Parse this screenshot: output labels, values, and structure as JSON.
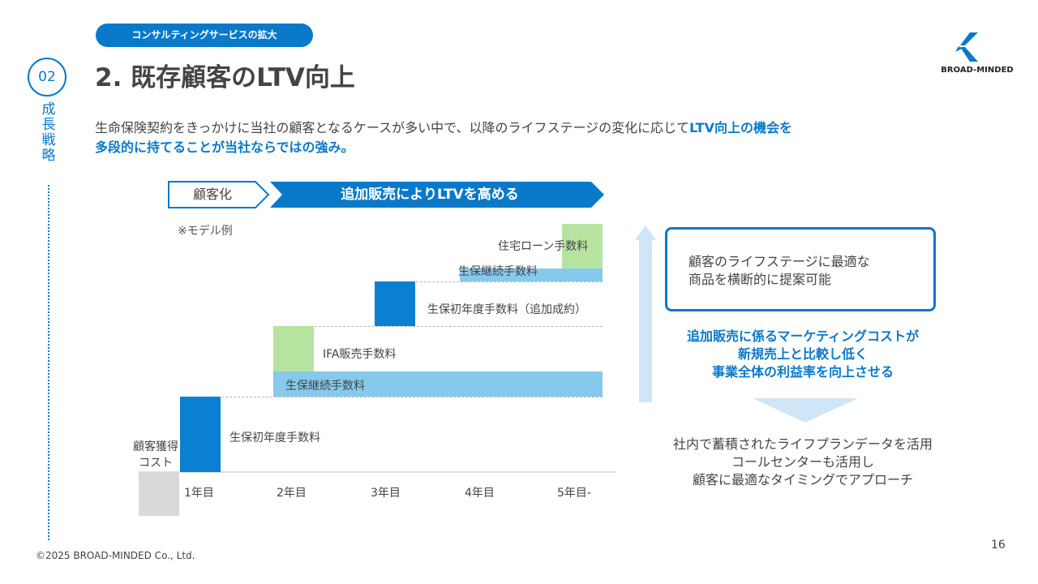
{
  "header": {
    "tag": "コンサルティングサービスの拡大",
    "section_number": "02",
    "title": "2. 既存顧客のLTV向上",
    "side_label": "成長戦略",
    "logo_text": "BROAD-MINDED"
  },
  "lead": {
    "text_part1": "生命保険契約をきっかけに当社の顧客となるケースが多い中で、以降のライフステージの変化に応じて",
    "highlight_part1": "LTV向上の機会を",
    "highlight_part2": "多段的に持てることが当社ならではの強み。"
  },
  "phases": {
    "phase1": "顧客化",
    "phase2": "追加販売によりLTVを高める"
  },
  "note": "※モデル例",
  "chart": {
    "acquisition_cost": "顧客獲得\nコスト",
    "labels": {
      "y1_first": "生保初年度手数料",
      "y2_ifa": "IFA販売手数料",
      "y2_renewal": "生保継続手数料",
      "y3_first": "生保初年度手数料（追加成約）",
      "y4_renewal": "生保継続手数料",
      "y5_mortgage": "住宅ローン手数料"
    },
    "x_axis": [
      "1年目",
      "2年目",
      "3年目",
      "4年目",
      "5年目-"
    ]
  },
  "panel": {
    "box_line1": "顧客のライフステージに最適な",
    "box_line2": "商品を横断的に提案可能",
    "blue_line1": "追加販売に係るマーケティングコストが",
    "blue_line2": "新規売上と比較し低く",
    "blue_line3": "事業全体の利益率を向上させる",
    "gray_line1": "社内で蓄積されたライフプランデータを活用",
    "gray_line2": "コールセンターも活用し",
    "gray_line3": "顧客に最適なタイミングでアプローチ"
  },
  "footer": {
    "copyright": "©2025 BROAD-MINDED Co., Ltd.",
    "page_number": "16"
  },
  "colors": {
    "brand_blue": "#0a79c9",
    "bar_dark": "#0b7fd1",
    "bar_light": "#86c9ec",
    "bar_green": "#b7e3a0",
    "bar_gray": "#d9d9d9"
  }
}
